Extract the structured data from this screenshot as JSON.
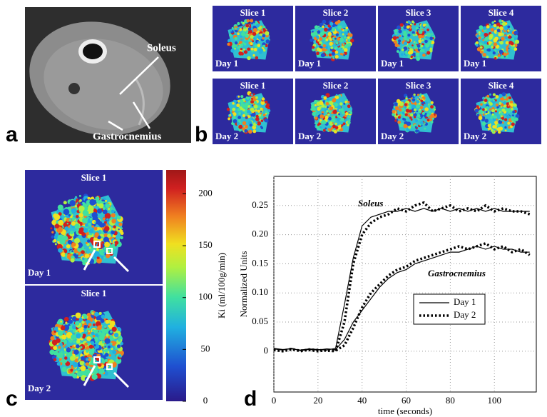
{
  "panels": {
    "a": {
      "label": "a",
      "annotations": [
        "Soleus",
        "Gastrocnemius"
      ]
    },
    "b": {
      "label": "b",
      "columns": [
        "Slice 1",
        "Slice 2",
        "Slice 3",
        "Slice 4"
      ],
      "rows": [
        "Day 1",
        "Day 2"
      ]
    },
    "c": {
      "label": "c",
      "slices": [
        "Slice 1",
        "Slice 1"
      ],
      "rows": [
        "Day 1",
        "Day 2"
      ],
      "colorbar": {
        "label": "Ki (ml/100g/min)",
        "lim": [
          0,
          223
        ],
        "ticks": [
          0,
          50,
          100,
          150,
          200
        ]
      }
    },
    "d": {
      "label": "d"
    }
  },
  "chart_data": {
    "type": "line",
    "xlabel": "time (seconds)",
    "ylabel": "Normalized Units",
    "x": [
      0,
      4,
      8,
      12,
      16,
      20,
      24,
      28,
      32,
      36,
      40,
      44,
      48,
      52,
      56,
      60,
      64,
      68,
      72,
      76,
      80,
      84,
      88,
      92,
      96,
      100,
      104,
      108,
      112,
      116
    ],
    "xlim": [
      0,
      119
    ],
    "ylim": [
      -0.07,
      0.3
    ],
    "xticks": [
      0,
      20,
      40,
      60,
      80,
      100
    ],
    "yticks": [
      0,
      0.05,
      {
        "value": 0.1,
        "label": "0.10"
      },
      0.15,
      {
        "value": 0.2,
        "label": "0.20"
      },
      0.25
    ],
    "annotations": [
      "Soleus",
      "Gastrocnemius"
    ],
    "legend": "center right",
    "series": [
      {
        "name": "Day 1",
        "color": "#000000",
        "dash": "solid",
        "values": [
          [
            0.005,
            0.003,
            0.004,
            0.002,
            0.004,
            0.003,
            0.002,
            0.005,
            0.08,
            0.16,
            0.215,
            0.23,
            0.235,
            0.24,
            0.24,
            0.245,
            0.24,
            0.245,
            0.24,
            0.245,
            0.24,
            0.245,
            0.24,
            0.245,
            0.24,
            0.245,
            0.24,
            0.24,
            0.24,
            0.24
          ],
          [
            0.004,
            0.002,
            0.005,
            0.001,
            0.003,
            0.002,
            0.004,
            0.003,
            0.02,
            0.05,
            0.07,
            0.09,
            0.11,
            0.125,
            0.135,
            0.14,
            0.15,
            0.155,
            0.16,
            0.165,
            0.17,
            0.17,
            0.175,
            0.18,
            0.175,
            0.18,
            0.175,
            0.175,
            0.17,
            0.17
          ]
        ]
      },
      {
        "name": "Day 2",
        "color": "#000000",
        "dash": "dotted",
        "values": [
          [
            0.003,
            0.001,
            0.004,
            0.0,
            0.003,
            0.002,
            0.001,
            0.0,
            0.05,
            0.15,
            0.2,
            0.22,
            0.23,
            0.235,
            0.245,
            0.24,
            0.25,
            0.255,
            0.24,
            0.245,
            0.25,
            0.24,
            0.245,
            0.24,
            0.25,
            0.24,
            0.245,
            0.24,
            0.24,
            0.235
          ],
          [
            0.002,
            0.0,
            0.003,
            0.001,
            0.002,
            0.0,
            0.002,
            0.001,
            0.01,
            0.04,
            0.075,
            0.1,
            0.115,
            0.13,
            0.14,
            0.145,
            0.155,
            0.16,
            0.165,
            0.17,
            0.175,
            0.18,
            0.175,
            0.18,
            0.185,
            0.175,
            0.18,
            0.17,
            0.175,
            0.165
          ]
        ]
      }
    ]
  }
}
